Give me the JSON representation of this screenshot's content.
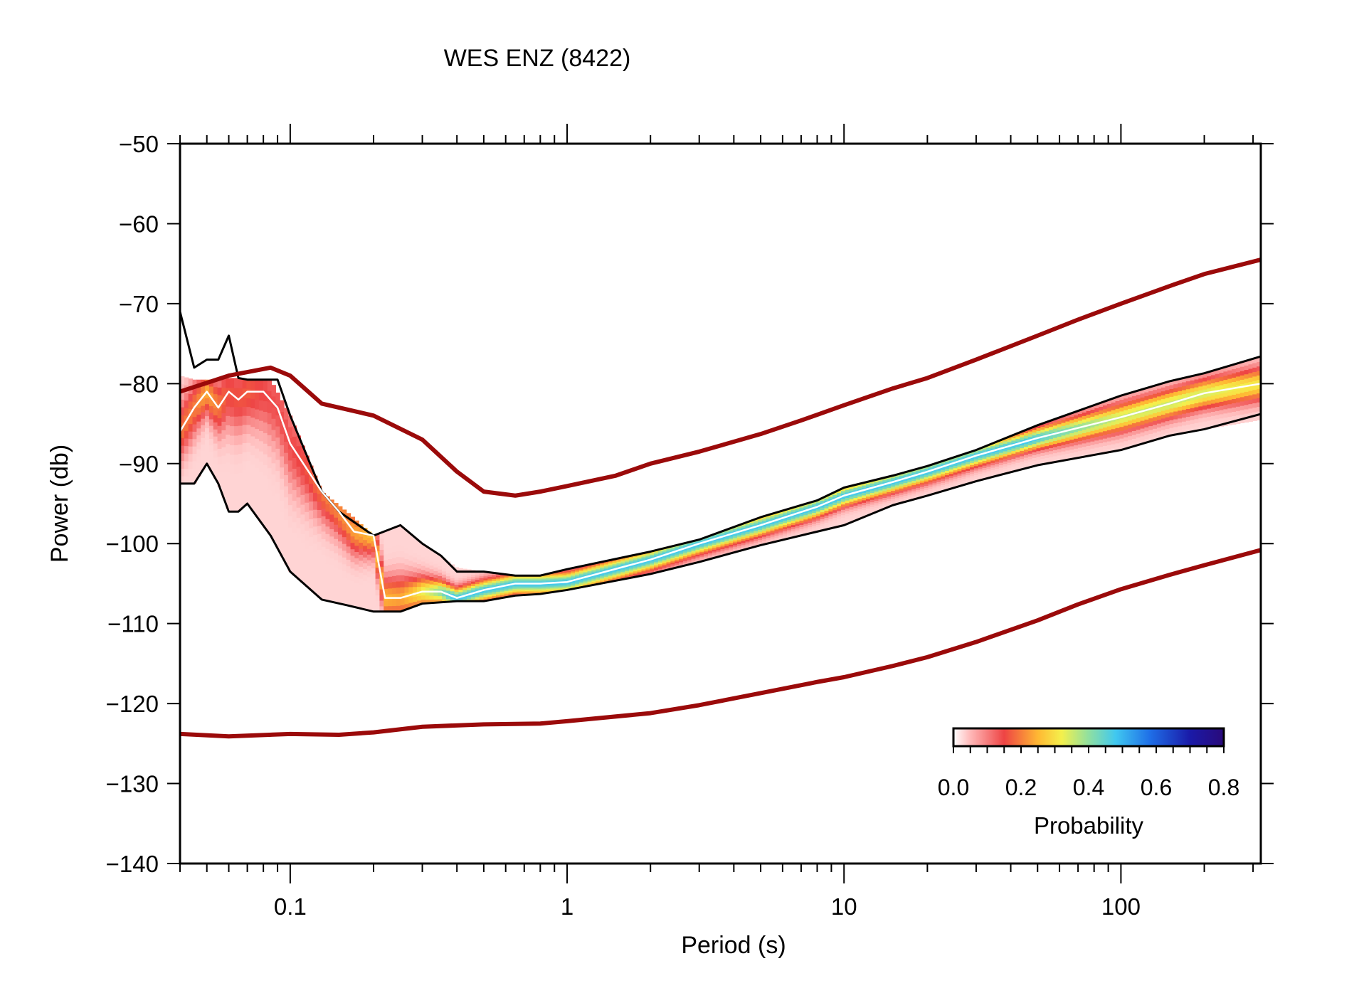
{
  "chart_data": {
    "type": "line",
    "title": "WES ENZ (8422)",
    "xlabel": "Period (s)",
    "ylabel": "Power (db)",
    "xscale": "log",
    "xlim": [
      0.04,
      320
    ],
    "ylim": [
      -140,
      -50
    ],
    "xticks": [
      {
        "value": 0.1,
        "label": "0.1"
      },
      {
        "value": 1,
        "label": "1"
      },
      {
        "value": 10,
        "label": "10"
      },
      {
        "value": 100,
        "label": "100"
      }
    ],
    "yticks": [
      {
        "value": -50,
        "label": "−50"
      },
      {
        "value": -60,
        "label": "−60"
      },
      {
        "value": -70,
        "label": "−70"
      },
      {
        "value": -80,
        "label": "−80"
      },
      {
        "value": -90,
        "label": "−90"
      },
      {
        "value": -100,
        "label": "−100"
      },
      {
        "value": -110,
        "label": "−110"
      },
      {
        "value": -120,
        "label": "−120"
      },
      {
        "value": -130,
        "label": "−130"
      },
      {
        "value": -140,
        "label": "−140"
      }
    ],
    "grid": false,
    "series": [
      {
        "role": "NHNM",
        "color": "#9b0a0a",
        "x": [
          0.04,
          0.06,
          0.085,
          0.1,
          0.13,
          0.2,
          0.3,
          0.4,
          0.5,
          0.65,
          0.8,
          1,
          1.5,
          2,
          3,
          5,
          7,
          10,
          15,
          20,
          30,
          50,
          70,
          100,
          150,
          200,
          320
        ],
        "y": [
          -81,
          -79,
          -78,
          -79,
          -82.5,
          -84,
          -87,
          -91,
          -93.5,
          -94,
          -93.5,
          -92.8,
          -91.5,
          -90,
          -88.5,
          -86.3,
          -84.6,
          -82.7,
          -80.6,
          -79.3,
          -77,
          -74,
          -72,
          -70,
          -67.8,
          -66.3,
          -64.5
        ]
      },
      {
        "role": "NLNM",
        "color": "#9b0a0a",
        "x": [
          0.04,
          0.06,
          0.1,
          0.15,
          0.2,
          0.3,
          0.5,
          0.8,
          1,
          2,
          3,
          5,
          8,
          10,
          15,
          20,
          30,
          50,
          70,
          100,
          150,
          200,
          320
        ],
        "y": [
          -123.8,
          -124.1,
          -123.8,
          -123.9,
          -123.6,
          -122.9,
          -122.6,
          -122.5,
          -122.2,
          -121.2,
          -120.2,
          -118.7,
          -117.3,
          -116.7,
          -115.3,
          -114.2,
          -112.3,
          -109.6,
          -107.6,
          -105.7,
          -103.9,
          -102.7,
          -100.8
        ]
      },
      {
        "role": "percentile-90",
        "color": "#000000",
        "x": [
          0.04,
          0.045,
          0.05,
          0.055,
          0.06,
          0.065,
          0.07,
          0.09,
          0.1,
          0.13,
          0.15,
          0.2,
          0.25,
          0.3,
          0.35,
          0.4,
          0.5,
          0.65,
          0.8,
          1,
          2,
          3,
          5,
          8,
          10,
          15,
          20,
          30,
          50,
          100,
          150,
          200,
          320
        ],
        "y": [
          -71,
          -78,
          -77,
          -77,
          -74,
          -79.3,
          -79.5,
          -79.5,
          -84,
          -93.5,
          -96,
          -99,
          -97.7,
          -100,
          -101.5,
          -103.5,
          -103.5,
          -104,
          -104,
          -103.2,
          -101,
          -99.5,
          -96.7,
          -94.6,
          -93,
          -91.5,
          -90.3,
          -88.3,
          -85.2,
          -81.5,
          -79.7,
          -78.7,
          -76.6
        ]
      },
      {
        "role": "percentile-10",
        "color": "#000000",
        "x": [
          0.04,
          0.045,
          0.05,
          0.055,
          0.06,
          0.065,
          0.07,
          0.085,
          0.1,
          0.13,
          0.16,
          0.2,
          0.25,
          0.3,
          0.4,
          0.5,
          0.65,
          0.8,
          1,
          2,
          3,
          5,
          8,
          10,
          15,
          20,
          30,
          50,
          100,
          150,
          200,
          320
        ],
        "y": [
          -92.5,
          -92.5,
          -90,
          -92.5,
          -96,
          -96,
          -95,
          -99,
          -103.5,
          -107,
          -107.7,
          -108.5,
          -108.5,
          -107.5,
          -107.2,
          -107.2,
          -106.5,
          -106.3,
          -105.8,
          -103.8,
          -102.3,
          -100.2,
          -98.5,
          -97.7,
          -95.2,
          -94,
          -92.2,
          -90.2,
          -88.3,
          -86.5,
          -85.7,
          -83.8
        ]
      },
      {
        "role": "mode",
        "color": "#ffffff",
        "x": [
          0.04,
          0.045,
          0.05,
          0.055,
          0.06,
          0.065,
          0.07,
          0.08,
          0.09,
          0.1,
          0.13,
          0.15,
          0.17,
          0.2,
          0.22,
          0.25,
          0.3,
          0.35,
          0.4,
          0.5,
          0.65,
          0.8,
          1,
          2,
          3,
          5,
          8,
          10,
          15,
          20,
          30,
          50,
          100,
          150,
          200,
          320
        ],
        "y": [
          -86,
          -83,
          -81,
          -83,
          -81,
          -82,
          -81,
          -81,
          -83,
          -87.5,
          -93.5,
          -96,
          -98.5,
          -99,
          -106.8,
          -106.8,
          -106,
          -106,
          -106.8,
          -105.8,
          -105,
          -105,
          -104.8,
          -102,
          -100,
          -97.7,
          -95.4,
          -94,
          -92.3,
          -91,
          -89,
          -86.8,
          -84.2,
          -82.5,
          -81.2,
          -80
        ]
      }
    ],
    "pdf_density": {
      "description_value_range": [
        0,
        0.5
      ],
      "bands": [
        {
          "x": [
            0.04,
            0.045,
            0.05,
            0.055,
            0.06,
            0.065,
            0.07,
            0.085,
            0.1,
            0.13,
            0.16,
            0.2,
            0.25,
            0.3,
            0.4,
            0.5,
            0.65,
            0.8,
            1,
            2,
            3,
            5,
            8,
            10,
            15,
            20,
            30,
            50,
            100,
            150,
            200,
            320
          ],
          "y_low": [
            -92.5,
            -92.5,
            -90,
            -92.5,
            -96,
            -96,
            -95,
            -99,
            -103.5,
            -107,
            -107.7,
            -108.5,
            -108.5,
            -107.5,
            -107.2,
            -107.2,
            -106.5,
            -106.3,
            -105.8,
            -103.8,
            -102.3,
            -100.2,
            -98.5,
            -97.7,
            -95.2,
            -94,
            -92.2,
            -90.2,
            -88.3,
            -86.5,
            -85.7,
            -84.5
          ],
          "y_high": [
            -79,
            -79.5,
            -79.5,
            -79.5,
            -79.3,
            -79.3,
            -79.5,
            -79.5,
            -84,
            -93.5,
            -96,
            -99,
            -97.7,
            -100,
            -103,
            -103.5,
            -104,
            -104,
            -103.2,
            -101,
            -99.5,
            -96.7,
            -94.6,
            -93,
            -91.5,
            -90.3,
            -88.3,
            -85.2,
            -81.5,
            -79.7,
            -78.7,
            -76.6
          ]
        }
      ]
    },
    "colorbar": {
      "title": "Probability",
      "min": 0,
      "max": 0.8,
      "ticks": [
        {
          "value": 0.0,
          "label": "0.0"
        },
        {
          "value": 0.2,
          "label": "0.2"
        },
        {
          "value": 0.4,
          "label": "0.4"
        },
        {
          "value": 0.6,
          "label": "0.6"
        },
        {
          "value": 0.8,
          "label": "0.8"
        }
      ],
      "stops": [
        {
          "value": 0.0,
          "color": "#ffffff"
        },
        {
          "value": 0.05,
          "color": "#ffb8b8"
        },
        {
          "value": 0.15,
          "color": "#ee4444"
        },
        {
          "value": 0.25,
          "color": "#ffb833"
        },
        {
          "value": 0.32,
          "color": "#f4f04c"
        },
        {
          "value": 0.4,
          "color": "#90e0a0"
        },
        {
          "value": 0.48,
          "color": "#40c8f0"
        },
        {
          "value": 0.58,
          "color": "#1f70e8"
        },
        {
          "value": 0.7,
          "color": "#1a1aa8"
        },
        {
          "value": 0.8,
          "color": "#2a0a7a"
        }
      ]
    }
  }
}
